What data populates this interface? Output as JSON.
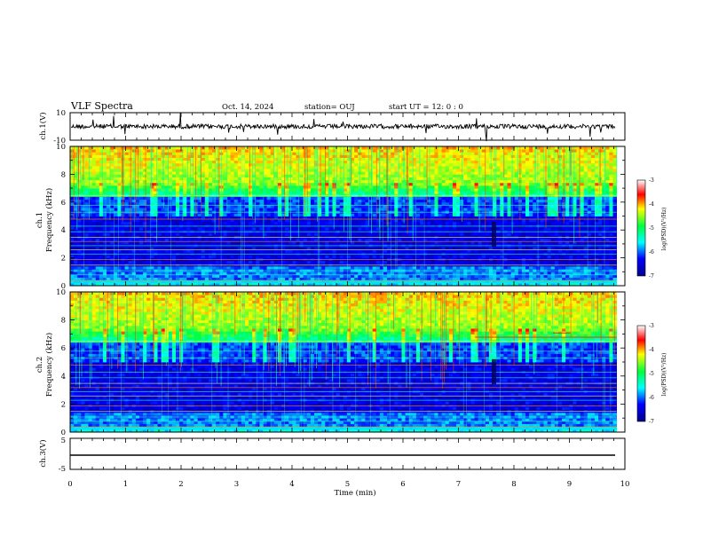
{
  "header": {
    "title": "VLF Spectra",
    "date": "Oct. 14, 2024",
    "station": "station= OUJ",
    "start_time": "start  UT =   12: 0   : 0"
  },
  "chart_data": [
    {
      "type": "line",
      "panel": "ch1-waveform",
      "ylabel": "ch.1(V)",
      "ylim": [
        -10,
        10
      ],
      "yticks": [
        "10",
        "-10"
      ],
      "xlim": [
        0,
        10
      ],
      "series": [
        {
          "values_desc": "dense noisy trace centred near 0 V, amplitude about 1-2 V, occasional spikes"
        }
      ]
    },
    {
      "type": "heatmap",
      "panel": "ch1-spectrogram",
      "ylabel": [
        "ch.1",
        "Frequency  (kHz)"
      ],
      "ylim": [
        0,
        10
      ],
      "yticks": [
        "0",
        "2",
        "4",
        "6",
        "8",
        "10"
      ],
      "xlim": [
        0,
        9.85
      ],
      "colorbar": {
        "label": "log(PSD)(V²/Hz)",
        "range": [
          -7,
          -3
        ],
        "ticks": [
          "-3",
          "-4",
          "-5",
          "-6",
          "-7"
        ]
      }
    },
    {
      "type": "heatmap",
      "panel": "ch2-spectrogram",
      "ylabel": [
        "ch.2",
        "Frequency  (kHz)"
      ],
      "ylim": [
        0,
        10
      ],
      "yticks": [
        "0",
        "2",
        "4",
        "6",
        "8",
        "10"
      ],
      "xlim": [
        0,
        9.85
      ],
      "colorbar": {
        "label": "log(PSD)(V²/Hz)",
        "range": [
          -7,
          -3
        ],
        "ticks": [
          "-3",
          "-4",
          "-5",
          "-6",
          "-7"
        ]
      }
    },
    {
      "type": "line",
      "panel": "ch3-waveform",
      "ylabel": "ch.3(V)",
      "ylim": [
        -5,
        5
      ],
      "yticks": [
        "5",
        "-5"
      ],
      "xlim": [
        0,
        10
      ],
      "series": [
        {
          "values_desc": "flat line near -2 V"
        }
      ]
    }
  ],
  "x_axis": {
    "label": "Time  (min)",
    "ticks": [
      "0",
      "1",
      "2",
      "3",
      "4",
      "5",
      "6",
      "7",
      "8",
      "9",
      "10"
    ]
  },
  "colors": {
    "low": "#00008b",
    "mid": "#00ff40",
    "high": "#ff0000",
    "line": "#000000"
  }
}
